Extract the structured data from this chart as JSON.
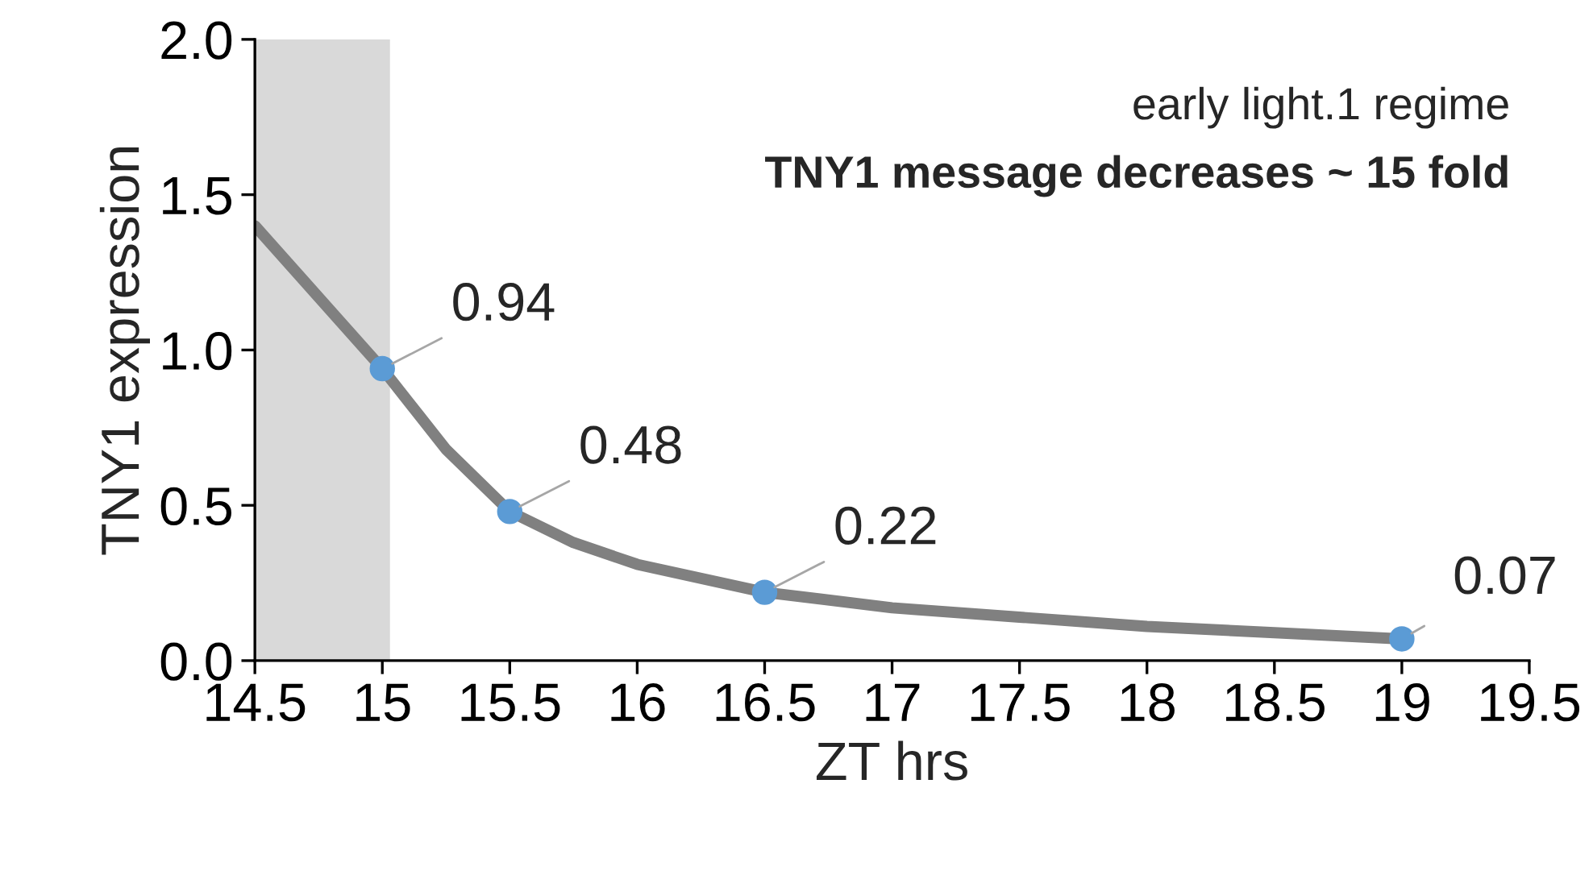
{
  "chart_data": {
    "type": "line",
    "xlabel": "ZT hrs",
    "ylabel": "TNY1 expression",
    "annotations": [
      "early light.1 regime",
      "TNY1 message decreases ~ 15 fold"
    ],
    "series": [
      {
        "color": "#808080",
        "x": [
          14.5,
          15,
          15.25,
          15.5,
          15.75,
          16,
          16.5,
          17,
          17.5,
          18,
          18.5,
          19
        ],
        "values": [
          1.4,
          0.94,
          0.68,
          0.48,
          0.38,
          0.31,
          0.22,
          0.17,
          0.14,
          0.11,
          0.09,
          0.07
        ],
        "marker": "none"
      },
      {
        "type": "scatter",
        "color": "#5b9bd5",
        "x": [
          15,
          15.5,
          16.5,
          19
        ],
        "values": [
          0.94,
          0.48,
          0.22,
          0.07
        ],
        "marker": "circle",
        "value_labels": [
          "0.94",
          "0.48",
          "0.22",
          "0.07"
        ]
      }
    ],
    "bands": [
      {
        "axis": "x",
        "from": 14.5,
        "to": 15.03,
        "color": "#d9d9d9"
      }
    ],
    "xlim": [
      14.5,
      19.5
    ],
    "xticks": [
      14.5,
      15,
      15.5,
      16,
      16.5,
      17,
      17.5,
      18,
      18.5,
      19,
      19.5
    ],
    "ylim": [
      0,
      2
    ],
    "yticks": [
      {
        "value": 0,
        "label": "0.0"
      },
      {
        "value": 0.5,
        "label": "0.5"
      },
      {
        "value": 1,
        "label": "1.0"
      },
      {
        "value": 1.5,
        "label": "1.5"
      },
      {
        "value": 2,
        "label": "2.0"
      }
    ],
    "grid": false,
    "legend": false
  }
}
